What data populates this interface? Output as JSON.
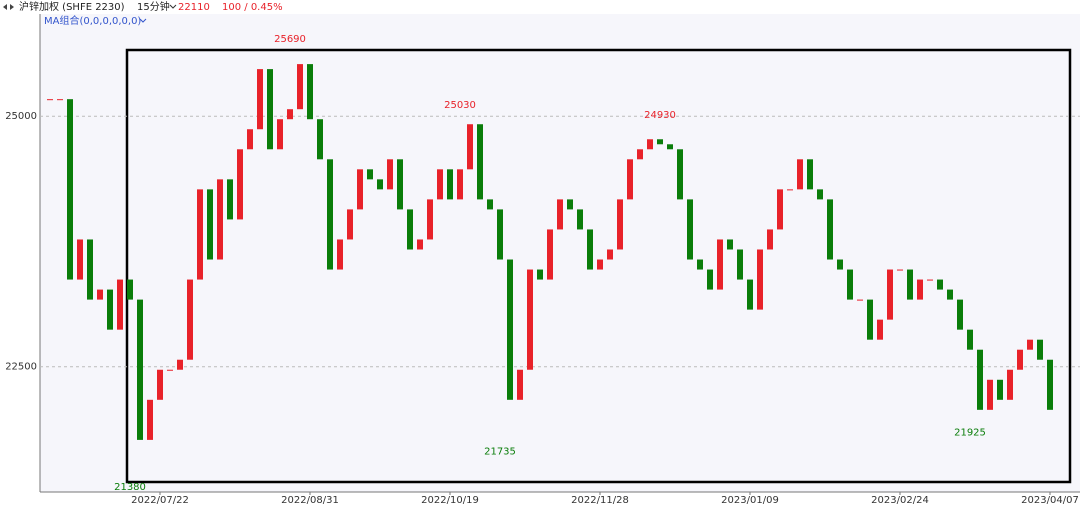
{
  "chart_data": {
    "type": "candlestick",
    "instrument": "沪锌加权 (SHFE 2230)",
    "period": "15分钟",
    "last_price": 22110,
    "change": "100 / 0.45%",
    "indicator": "MA组合(0,0,0,0,0,0)",
    "up_color": "#e8222a",
    "down_color": "#0a7d0a",
    "values": [
      25170,
      25170,
      23370,
      23770,
      23170,
      23270,
      22870,
      23370,
      23170,
      21770,
      22170,
      22470,
      22470,
      22570,
      23370,
      24270,
      23570,
      24370,
      23970,
      24670,
      24870,
      25470,
      24670,
      24970,
      25070,
      25520,
      24970,
      24570,
      23470,
      23770,
      24070,
      24470,
      24370,
      24270,
      24570,
      24070,
      23670,
      23770,
      24170,
      24470,
      24170,
      24470,
      24920,
      24170,
      24070,
      23570,
      22170,
      22470,
      23470,
      23370,
      23870,
      24170,
      24070,
      23870,
      23470,
      23570,
      23670,
      24170,
      24570,
      24670,
      24770,
      24720,
      24670,
      24170,
      23570,
      23470,
      23270,
      23770,
      23670,
      23370,
      23070,
      23670,
      23870,
      24270,
      24270,
      24570,
      24270,
      24170,
      23570,
      23470,
      23170,
      23170,
      22770,
      22970,
      23470,
      23470,
      23170,
      23370,
      23370,
      23270,
      23170,
      22870,
      22670,
      22070,
      22370,
      22170,
      22470,
      22670,
      22770,
      22570,
      22070
    ],
    "xlim": [
      -1,
      103
    ],
    "xticks": [
      {
        "value": 11,
        "label": "2022/07/22"
      },
      {
        "value": 26,
        "label": "2022/08/31"
      },
      {
        "value": 40,
        "label": "2022/10/19"
      },
      {
        "value": 55,
        "label": "2022/11/28"
      },
      {
        "value": 70,
        "label": "2023/01/09"
      },
      {
        "value": 85,
        "label": "2023/02/24"
      },
      {
        "value": 100,
        "label": "2023/04/07"
      }
    ],
    "ylim": [
      21250,
      26020
    ],
    "yticks": [
      22500,
      25000
    ],
    "grid": true,
    "annotations": [
      {
        "index": 24,
        "value": 25690,
        "kind": "high"
      },
      {
        "index": 41,
        "value": 25030,
        "kind": "high"
      },
      {
        "index": 61,
        "value": 24930,
        "kind": "high"
      },
      {
        "index": 45,
        "value": 21735,
        "kind": "low"
      },
      {
        "index": 92,
        "value": 21925,
        "kind": "low"
      },
      {
        "index": 8,
        "value": 21380,
        "kind": "low"
      }
    ]
  }
}
